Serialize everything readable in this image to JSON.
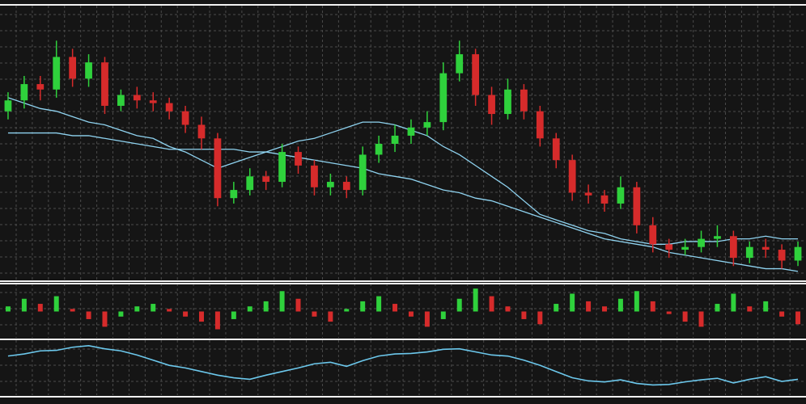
{
  "chart_data": [
    {
      "type": "candlestick",
      "ylim": [
        0,
        100
      ],
      "grid": true,
      "up_color": "#2fd13c",
      "down_color": "#d62b2b",
      "open": [
        62,
        66,
        72,
        70,
        82,
        74,
        80,
        64,
        68,
        66,
        65,
        62,
        57,
        52,
        30,
        33,
        38,
        36,
        47,
        42,
        34,
        36,
        33,
        46,
        50,
        53,
        56,
        58,
        76,
        83,
        68,
        61,
        70,
        62,
        52,
        44,
        32,
        31,
        28,
        34,
        20,
        13,
        11,
        12,
        15,
        16,
        8,
        12,
        11,
        7
      ],
      "high": [
        69,
        75,
        75,
        88,
        85,
        83,
        82,
        70,
        71,
        69,
        67,
        64,
        60,
        54,
        36,
        41,
        40,
        50,
        49,
        44,
        39,
        38,
        49,
        53,
        57,
        59,
        62,
        80,
        88,
        85,
        71,
        74,
        72,
        64,
        54,
        46,
        35,
        33,
        38,
        36,
        23,
        15,
        15,
        18,
        20,
        18,
        14,
        15,
        13,
        14
      ],
      "low": [
        59,
        63,
        66,
        67,
        71,
        71,
        61,
        62,
        63,
        62,
        59,
        54,
        48,
        27,
        28,
        31,
        33,
        34,
        39,
        31,
        31,
        30,
        31,
        43,
        47,
        50,
        53,
        55,
        73,
        64,
        57,
        59,
        59,
        49,
        41,
        29,
        28,
        25,
        26,
        17,
        10,
        8,
        9,
        10,
        12,
        5,
        6,
        8,
        4,
        5
      ],
      "close": [
        66,
        72,
        70,
        82,
        74,
        80,
        64,
        68,
        66,
        65,
        62,
        57,
        52,
        30,
        33,
        38,
        36,
        47,
        42,
        34,
        36,
        33,
        46,
        50,
        53,
        56,
        58,
        76,
        83,
        68,
        61,
        70,
        62,
        52,
        44,
        32,
        31,
        28,
        34,
        20,
        13,
        11,
        12,
        15,
        16,
        8,
        12,
        11,
        7,
        12
      ],
      "series": [
        {
          "color": "#8fd3f0",
          "values": [
            67,
            65,
            63,
            62,
            60,
            58,
            57,
            55,
            53,
            52,
            49,
            47,
            44,
            41,
            43,
            45,
            47,
            49,
            51,
            52,
            54,
            56,
            58,
            58,
            57,
            55,
            53,
            49,
            46,
            42,
            38,
            34,
            29,
            24,
            22,
            20,
            18,
            17,
            15,
            14,
            13,
            13,
            14,
            14,
            14,
            15,
            15,
            16,
            15,
            15
          ]
        },
        {
          "color": "#8fd3f0",
          "values": [
            54,
            54,
            54,
            54,
            53,
            53,
            52,
            51,
            50,
            49,
            48,
            48,
            48,
            48,
            48,
            47,
            47,
            46,
            45,
            44,
            43,
            42,
            41,
            39,
            38,
            37,
            35,
            33,
            32,
            30,
            29,
            27,
            25,
            23,
            21,
            19,
            17,
            15,
            14,
            13,
            12,
            10,
            9,
            8,
            7,
            6,
            5,
            4,
            4,
            3
          ]
        }
      ]
    },
    {
      "type": "bar",
      "ylim": [
        -1,
        1
      ],
      "grid": true,
      "up_color": "#2fd13c",
      "down_color": "#d62b2b",
      "values": [
        0.2,
        0.5,
        0.3,
        0.6,
        0.1,
        -0.3,
        -0.6,
        -0.2,
        0.2,
        0.3,
        0.1,
        -0.2,
        -0.4,
        -0.7,
        -0.3,
        0.2,
        0.4,
        0.8,
        0.5,
        -0.2,
        -0.4,
        0.1,
        0.4,
        0.6,
        0.3,
        -0.2,
        -0.6,
        -0.3,
        0.5,
        0.9,
        0.6,
        0.2,
        -0.3,
        -0.5,
        0.3,
        0.7,
        0.4,
        0.2,
        0.5,
        0.8,
        0.4,
        -0.1,
        -0.4,
        -0.6,
        0.3,
        0.7,
        0.2,
        0.4,
        -0.2,
        -0.5
      ]
    },
    {
      "type": "line",
      "ylim": [
        0,
        100
      ],
      "grid": true,
      "color": "#6cc8ec",
      "values": [
        74,
        78,
        84,
        85,
        91,
        94,
        88,
        84,
        76,
        66,
        56,
        51,
        44,
        37,
        32,
        29,
        37,
        44,
        51,
        59,
        62,
        54,
        65,
        74,
        78,
        79,
        82,
        87,
        88,
        82,
        76,
        74,
        66,
        56,
        44,
        32,
        26,
        24,
        28,
        21,
        18,
        19,
        24,
        28,
        31,
        22,
        29,
        34,
        25,
        29
      ]
    }
  ]
}
